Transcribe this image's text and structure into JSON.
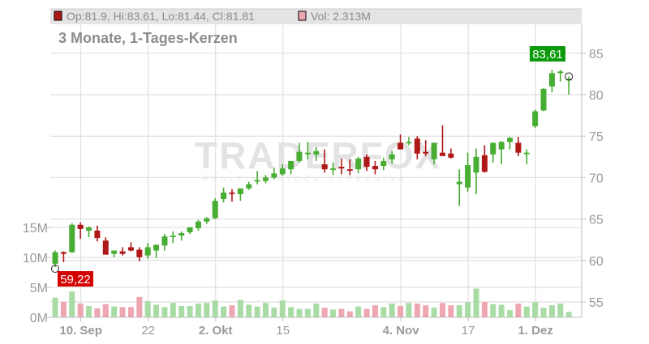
{
  "header": {
    "ohlc_text": "Op:81.9, Hi:83.61, Lo:81.44, Cl:81.81",
    "ohlc_swatch_color": "#b01717",
    "volume_text": "Vol: 2.313M",
    "volume_swatch_color": "#eea7b0"
  },
  "subtitle": "3 Monate, 1-Tages-Kerzen",
  "watermark": {
    "main": "TRADERFOX",
    "sub": "REALTIME STOCK SCREENING"
  },
  "labels": {
    "last_high": "83,61",
    "period_low": "59,22"
  },
  "colors": {
    "up": "#47ad33",
    "down": "#b01717",
    "vol_up": "#a9dca4",
    "vol_down": "#eea7b0",
    "vol_neutral": "#bdbdbd",
    "grid": "#dadada",
    "axis_text": "#9a9a9a",
    "high_badge": "#0a9a0a",
    "low_badge": "#d40000"
  },
  "chart_data": {
    "type": "candlestick",
    "title": "3 Monate, 1-Tages-Kerzen",
    "y_price_ticks": [
      55,
      60,
      65,
      70,
      75,
      80,
      85
    ],
    "y_price_range": [
      53,
      87
    ],
    "y_volume_ticks": [
      "0M",
      "5M",
      "10M",
      "15M"
    ],
    "y_volume_values": [
      0,
      5,
      10,
      15
    ],
    "x_tick_labels": [
      {
        "label": "10. Sep",
        "index": 3,
        "bold": true
      },
      {
        "label": "22",
        "index": 11,
        "bold": false
      },
      {
        "label": "2. Okt",
        "index": 19,
        "bold": true
      },
      {
        "label": "15",
        "index": 27,
        "bold": false
      },
      {
        "label": "4. Nov",
        "index": 41,
        "bold": true
      },
      {
        "label": "17",
        "index": 49,
        "bold": false
      },
      {
        "label": "1. Dez",
        "index": 57,
        "bold": true
      }
    ],
    "last_candle": {
      "open": 81.9,
      "high": 83.61,
      "low": 81.44,
      "close": 81.81,
      "volume": "2.313M"
    },
    "annotations": [
      {
        "text": "83,61",
        "type": "max",
        "index": 61
      },
      {
        "text": "59,22",
        "type": "min",
        "index": 0
      }
    ],
    "candles": [
      {
        "o": 59.6,
        "h": 61.2,
        "l": 59.2,
        "c": 61.0,
        "v": 3.3
      },
      {
        "o": 61.0,
        "h": 61.1,
        "l": 59.8,
        "c": 60.8,
        "v": 2.6
      },
      {
        "o": 61.0,
        "h": 64.5,
        "l": 60.9,
        "c": 64.3,
        "v": 4.3
      },
      {
        "o": 64.3,
        "h": 64.6,
        "l": 62.6,
        "c": 63.8,
        "v": 2.3
      },
      {
        "o": 63.6,
        "h": 64.1,
        "l": 62.8,
        "c": 64.0,
        "v": 1.9
      },
      {
        "o": 63.6,
        "h": 64.2,
        "l": 62.3,
        "c": 62.7,
        "v": 1.5
      },
      {
        "o": 62.4,
        "h": 62.8,
        "l": 60.8,
        "c": 60.7,
        "v": 2.2
      },
      {
        "o": 60.8,
        "h": 61.2,
        "l": 60.4,
        "c": 61.2,
        "v": 1.8
      },
      {
        "o": 61.1,
        "h": 61.6,
        "l": 60.6,
        "c": 60.8,
        "v": 1.7
      },
      {
        "o": 61.6,
        "h": 62.2,
        "l": 61.1,
        "c": 61.2,
        "v": 1.7
      },
      {
        "o": 61.3,
        "h": 61.6,
        "l": 59.9,
        "c": 60.4,
        "v": 3.4
      },
      {
        "o": 60.6,
        "h": 62.1,
        "l": 60.2,
        "c": 61.6,
        "v": 2.7
      },
      {
        "o": 61.2,
        "h": 61.8,
        "l": 60.3,
        "c": 61.9,
        "v": 2.1
      },
      {
        "o": 61.8,
        "h": 63.2,
        "l": 61.2,
        "c": 62.9,
        "v": 1.7
      },
      {
        "o": 62.9,
        "h": 63.5,
        "l": 62.1,
        "c": 63.0,
        "v": 2.4
      },
      {
        "o": 63.0,
        "h": 63.5,
        "l": 62.4,
        "c": 63.3,
        "v": 1.9
      },
      {
        "o": 63.4,
        "h": 63.9,
        "l": 63.2,
        "c": 64.0,
        "v": 1.9
      },
      {
        "o": 63.9,
        "h": 64.9,
        "l": 63.6,
        "c": 64.7,
        "v": 2.3
      },
      {
        "o": 64.7,
        "h": 65.2,
        "l": 64.4,
        "c": 65.1,
        "v": 2.4
      },
      {
        "o": 65.1,
        "h": 67.5,
        "l": 65.0,
        "c": 67.2,
        "v": 2.8
      },
      {
        "o": 67.4,
        "h": 68.8,
        "l": 67.0,
        "c": 68.2,
        "v": 1.8
      },
      {
        "o": 68.2,
        "h": 68.6,
        "l": 67.1,
        "c": 68.1,
        "v": 2.0
      },
      {
        "o": 68.0,
        "h": 68.3,
        "l": 67.2,
        "c": 68.7,
        "v": 2.9
      },
      {
        "o": 68.7,
        "h": 69.5,
        "l": 68.5,
        "c": 69.2,
        "v": 2.1
      },
      {
        "o": 69.6,
        "h": 70.8,
        "l": 69.2,
        "c": 69.7,
        "v": 1.8
      },
      {
        "o": 69.6,
        "h": 70.3,
        "l": 69.3,
        "c": 70.0,
        "v": 2.4
      },
      {
        "o": 70.0,
        "h": 71.2,
        "l": 69.8,
        "c": 70.5,
        "v": 1.6
      },
      {
        "o": 70.4,
        "h": 71.6,
        "l": 70.2,
        "c": 71.1,
        "v": 2.8
      },
      {
        "o": 71.0,
        "h": 71.8,
        "l": 70.4,
        "c": 72.0,
        "v": 1.7
      },
      {
        "o": 72.0,
        "h": 74.2,
        "l": 71.8,
        "c": 73.1,
        "v": 1.4
      },
      {
        "o": 73.0,
        "h": 74.3,
        "l": 72.2,
        "c": 73.0,
        "v": 1.4
      },
      {
        "o": 72.8,
        "h": 73.7,
        "l": 72.0,
        "c": 73.2,
        "v": 2.3
      },
      {
        "o": 71.6,
        "h": 73.4,
        "l": 70.6,
        "c": 71.0,
        "v": 1.6
      },
      {
        "o": 71.0,
        "h": 71.8,
        "l": 70.3,
        "c": 71.1,
        "v": 1.3
      },
      {
        "o": 71.3,
        "h": 72.3,
        "l": 70.4,
        "c": 71.1,
        "v": 1.4
      },
      {
        "o": 71.0,
        "h": 72.2,
        "l": 70.3,
        "c": 70.9,
        "v": 1.0
      },
      {
        "o": 71.0,
        "h": 72.5,
        "l": 70.5,
        "c": 72.3,
        "v": 1.8
      },
      {
        "o": 72.5,
        "h": 72.8,
        "l": 70.8,
        "c": 71.3,
        "v": 1.4
      },
      {
        "o": 71.4,
        "h": 72.0,
        "l": 70.4,
        "c": 71.0,
        "v": 2.0
      },
      {
        "o": 71.4,
        "h": 72.4,
        "l": 70.9,
        "c": 72.0,
        "v": 1.7
      },
      {
        "o": 72.2,
        "h": 73.2,
        "l": 71.7,
        "c": 72.8,
        "v": 2.3
      },
      {
        "o": 74.2,
        "h": 75.2,
        "l": 73.4,
        "c": 73.4,
        "v": 1.9
      },
      {
        "o": 74.3,
        "h": 74.9,
        "l": 73.9,
        "c": 74.3,
        "v": 2.4
      },
      {
        "o": 74.7,
        "h": 75.0,
        "l": 72.2,
        "c": 72.9,
        "v": 2.3
      },
      {
        "o": 73.1,
        "h": 74.5,
        "l": 72.6,
        "c": 72.9,
        "v": 2.0
      },
      {
        "o": 72.2,
        "h": 74.0,
        "l": 71.6,
        "c": 74.2,
        "v": 1.6
      },
      {
        "o": 73.0,
        "h": 76.3,
        "l": 72.6,
        "c": 72.6,
        "v": 2.4
      },
      {
        "o": 72.9,
        "h": 73.5,
        "l": 72.3,
        "c": 72.4,
        "v": 2.0
      },
      {
        "o": 69.2,
        "h": 71.0,
        "l": 66.6,
        "c": 69.5,
        "v": 2.0
      },
      {
        "o": 68.8,
        "h": 73.0,
        "l": 68.3,
        "c": 71.5,
        "v": 2.5
      },
      {
        "o": 70.6,
        "h": 73.5,
        "l": 68.0,
        "c": 72.5,
        "v": 4.8
      }
    ]
  }
}
